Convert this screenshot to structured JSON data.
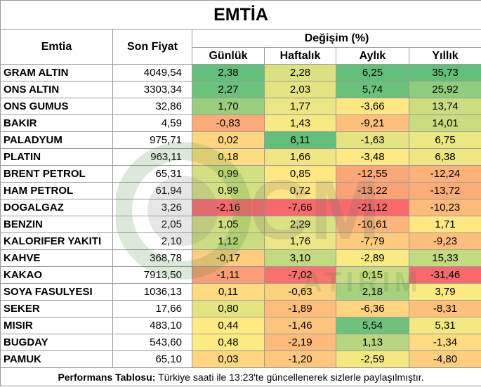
{
  "title": "EMTİA",
  "headers": {
    "emtia": "Emtia",
    "son_fiyat": "Son Fiyat",
    "degisim": "Değişim (%)",
    "gunluk": "Günlük",
    "haftalik": "Haftalık",
    "aylik": "Aylık",
    "yillik": "Yıllık"
  },
  "rows": [
    {
      "name": "GRAM ALTIN",
      "price": "4049,54",
      "gunluk": "2,38",
      "haftalik": "2,28",
      "aylik": "6,25",
      "yillik": "35,73"
    },
    {
      "name": "ONS ALTIN",
      "price": "3303,34",
      "gunluk": "2,27",
      "haftalik": "2,03",
      "aylik": "5,74",
      "yillik": "25,92"
    },
    {
      "name": "ONS GUMUS",
      "price": "32,86",
      "gunluk": "1,70",
      "haftalik": "1,77",
      "aylik": "-3,66",
      "yillik": "13,74"
    },
    {
      "name": "BAKIR",
      "price": "4,59",
      "gunluk": "-0,83",
      "haftalik": "1,43",
      "aylik": "-9,21",
      "yillik": "14,01"
    },
    {
      "name": "PALADYUM",
      "price": "975,71",
      "gunluk": "0,02",
      "haftalik": "6,11",
      "aylik": "-1,63",
      "yillik": "6,75"
    },
    {
      "name": "PLATIN",
      "price": "963,11",
      "gunluk": "0,18",
      "haftalik": "1,66",
      "aylik": "-3,48",
      "yillik": "6,38"
    },
    {
      "name": "BRENT PETROL",
      "price": "65,31",
      "gunluk": "0,99",
      "haftalik": "0,85",
      "aylik": "-12,55",
      "yillik": "-12,24"
    },
    {
      "name": "HAM PETROL",
      "price": "61,94",
      "gunluk": "0,99",
      "haftalik": "0,72",
      "aylik": "-13,22",
      "yillik": "-13,72"
    },
    {
      "name": "DOGALGAZ",
      "price": "3,26",
      "gunluk": "-2,16",
      "haftalik": "-7,66",
      "aylik": "-21,12",
      "yillik": "-10,23"
    },
    {
      "name": "BENZIN",
      "price": "2,05",
      "gunluk": "1,05",
      "haftalik": "2,29",
      "aylik": "-10,61",
      "yillik": "1,71"
    },
    {
      "name": "KALORIFER YAKITI",
      "price": "2,10",
      "gunluk": "1,12",
      "haftalik": "1,76",
      "aylik": "-7,79",
      "yillik": "-9,23"
    },
    {
      "name": "KAHVE",
      "price": "368,78",
      "gunluk": "-0,17",
      "haftalik": "3,10",
      "aylik": "-2,89",
      "yillik": "15,33"
    },
    {
      "name": "KAKAO",
      "price": "7913,50",
      "gunluk": "-1,11",
      "haftalik": "-7,02",
      "aylik": "0,15",
      "yillik": "-31,46"
    },
    {
      "name": "SOYA FASULYESI",
      "price": "1036,13",
      "gunluk": "0,11",
      "haftalik": "-0,63",
      "aylik": "2,18",
      "yillik": "3,79"
    },
    {
      "name": "SEKER",
      "price": "17,66",
      "gunluk": "0,80",
      "haftalik": "-1,89",
      "aylik": "-6,36",
      "yillik": "-8,31"
    },
    {
      "name": "MISIR",
      "price": "483,10",
      "gunluk": "0,44",
      "haftalik": "-1,46",
      "aylik": "5,54",
      "yillik": "5,31"
    },
    {
      "name": "BUGDAY",
      "price": "543,60",
      "gunluk": "0,48",
      "haftalik": "-2,19",
      "aylik": "1,13",
      "yillik": "-1,34"
    },
    {
      "name": "PAMUK",
      "price": "65,10",
      "gunluk": "0,03",
      "haftalik": "-1,20",
      "aylik": "-2,59",
      "yillik": "-4,80"
    }
  ],
  "footer": {
    "label": "Performans Tablosu:",
    "text": " Türkiye saati ile 13:23'te güncellenerek sizlerle paylaşılmıştır."
  },
  "colors": {
    "green": "#63be7b",
    "yellow": "#ffeb84",
    "red": "#f8696b"
  },
  "watermark_icon": "gcm-logo-watermark"
}
